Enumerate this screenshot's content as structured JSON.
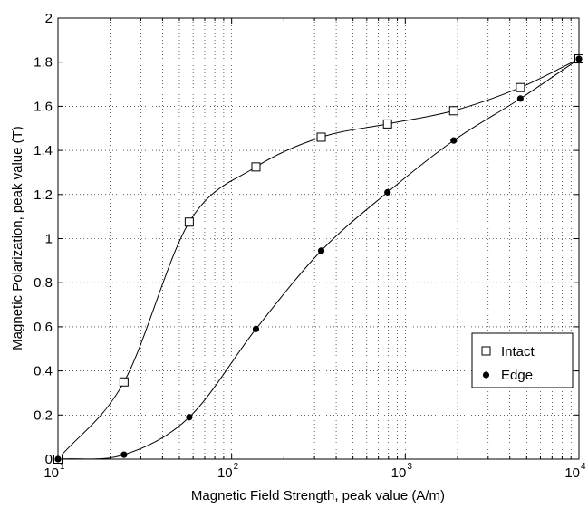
{
  "chart_data": {
    "type": "scatter",
    "xlabel": "Magnetic Field Strength, peak value (A/m)",
    "ylabel": "Magnetic Polarization, peak value (T)",
    "xscale": "log",
    "xlim": [
      10,
      10000
    ],
    "ylim": [
      0,
      2
    ],
    "grid": true,
    "legend_placement": "lower-right",
    "x_ticks": [
      {
        "value": 10,
        "base": "10",
        "exp": "1"
      },
      {
        "value": 100,
        "base": "10",
        "exp": "2"
      },
      {
        "value": 1000,
        "base": "10",
        "exp": "3"
      },
      {
        "value": 10000,
        "base": "10",
        "exp": "4"
      }
    ],
    "y_ticks": [
      {
        "value": 0,
        "label": "0"
      },
      {
        "value": 0.2,
        "label": "0.2"
      },
      {
        "value": 0.4,
        "label": "0.4"
      },
      {
        "value": 0.6,
        "label": "0.6"
      },
      {
        "value": 0.8,
        "label": "0.8"
      },
      {
        "value": 1.0,
        "label": "1"
      },
      {
        "value": 1.2,
        "label": "1.2"
      },
      {
        "value": 1.4,
        "label": "1.4"
      },
      {
        "value": 1.6,
        "label": "1.6"
      },
      {
        "value": 1.8,
        "label": "1.8"
      },
      {
        "value": 2.0,
        "label": "2"
      }
    ],
    "series": [
      {
        "name": "Intact",
        "marker": "square-open",
        "color": "#000000",
        "x": [
          10,
          24,
          57,
          138,
          328,
          790,
          1900,
          4600,
          11000
        ],
        "y": [
          0.0,
          0.35,
          1.075,
          1.325,
          1.46,
          1.52,
          1.58,
          1.685,
          1.815
        ]
      },
      {
        "name": "Edge",
        "marker": "circle-filled",
        "color": "#000000",
        "x": [
          10,
          24,
          57,
          138,
          328,
          790,
          1900,
          4600,
          11000
        ],
        "y": [
          0.0,
          0.02,
          0.19,
          0.59,
          0.945,
          1.21,
          1.445,
          1.635,
          1.815
        ]
      }
    ]
  }
}
